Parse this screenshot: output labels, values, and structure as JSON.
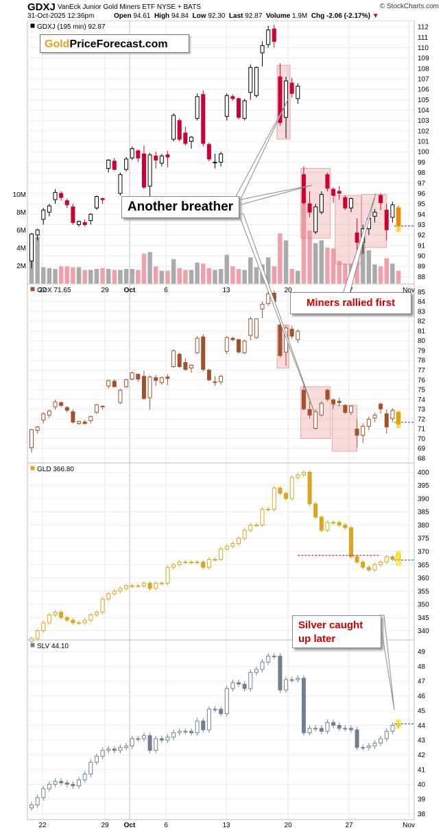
{
  "header": {
    "symbol": "GDXJ",
    "name": "VanEck Junior Gold Miners ETF  NYSE + BATS",
    "source": "© StockCharts.com",
    "date": "31-Oct-2025 12:36pm",
    "open_label": "Open",
    "open": "94.61",
    "high_label": "High",
    "high": "94.84",
    "low_label": "Low",
    "low": "92.30",
    "last_label": "Last",
    "last": "92.87",
    "volume_label": "Volume",
    "volume": "1.9M",
    "chg_label": "Chg",
    "chg": "-2.06 (-2.17%)"
  },
  "logo": {
    "gold": "Gold",
    "rest": "PriceForecast.com"
  },
  "annotations": {
    "another_breather": "Another breather",
    "miners_rallied": "Miners rallied first",
    "silver_caught_line1": "Silver caught",
    "silver_caught_line2": "up later"
  },
  "colors": {
    "up": "#000000",
    "down": "#cc0033",
    "gdx": "#a0522d",
    "gld": "#daa520",
    "slv": "#708090",
    "volume_up": "#aaaaaa",
    "volume_down": "#f0a0a8",
    "highlight": "#e88888"
  },
  "chart_data": {
    "type": "candlestick",
    "x_ticks": [
      "22",
      "29",
      "Oct",
      "6",
      "13",
      "20",
      "27",
      "Nov"
    ],
    "panels": [
      {
        "title": "GDXJ (195 min) 92.87",
        "y_ticks": [
          88,
          89,
          90,
          91,
          92,
          93,
          94,
          95,
          96,
          97,
          98,
          99,
          100,
          101,
          102,
          103,
          104,
          105,
          106,
          107,
          108,
          109,
          110,
          111,
          112
        ],
        "ylim": [
          87.3,
          112.6
        ],
        "volume_ticks": [
          "2M",
          "4M",
          "6M",
          "8M",
          "10M"
        ],
        "last": 92.87,
        "ohlc": [
          [
            89.5,
            92.2,
            88.8,
            92.1
          ],
          [
            92.0,
            92.6,
            91.5,
            92.5
          ],
          [
            93.5,
            94.6,
            93.0,
            94.4
          ],
          [
            94.2,
            95.0,
            93.8,
            94.8
          ],
          [
            95.4,
            96.4,
            95.0,
            96.1
          ],
          [
            96.0,
            96.2,
            95.3,
            95.6
          ],
          [
            95.3,
            95.5,
            94.6,
            94.9
          ],
          [
            94.7,
            95.0,
            93.0,
            93.2
          ],
          [
            93.0,
            93.4,
            92.8,
            93.3
          ],
          [
            93.2,
            93.5,
            92.8,
            93.0
          ],
          [
            93.4,
            94.1,
            93.0,
            94.0
          ],
          [
            94.6,
            95.8,
            94.4,
            95.7
          ],
          [
            95.5,
            95.6,
            95.0,
            95.4
          ],
          [
            98.4,
            99.3,
            98.0,
            99.2
          ],
          [
            99.1,
            99.4,
            98.2,
            98.3
          ],
          [
            96.0,
            98.0,
            95.8,
            97.8
          ],
          [
            98.3,
            99.5,
            98.1,
            99.3
          ],
          [
            99.4,
            100.5,
            99.2,
            100.3
          ],
          [
            100.1,
            100.2,
            99.0,
            99.4
          ],
          [
            99.8,
            100.6,
            96.4,
            96.6
          ],
          [
            96.7,
            99.9,
            95.0,
            99.7
          ],
          [
            99.6,
            100.0,
            98.4,
            99.2
          ],
          [
            98.9,
            99.8,
            98.6,
            99.6
          ],
          [
            99.7,
            100.1,
            98.5,
            99.5
          ],
          [
            101.2,
            103.7,
            101.0,
            103.5
          ],
          [
            103.0,
            103.2,
            101.0,
            101.2
          ],
          [
            101.8,
            102.4,
            100.6,
            100.8
          ],
          [
            101.0,
            101.5,
            100.3,
            101.4
          ],
          [
            103.2,
            105.6,
            103.0,
            105.3
          ],
          [
            105.5,
            105.9,
            100.5,
            100.8
          ],
          [
            100.7,
            100.9,
            99.1,
            99.3
          ],
          [
            99.0,
            99.8,
            98.4,
            99.0
          ],
          [
            99.0,
            100.0,
            98.6,
            99.8
          ],
          [
            103.4,
            105.6,
            103.0,
            105.4
          ],
          [
            105.3,
            105.5,
            104.9,
            105.1
          ],
          [
            105.1,
            105.2,
            103.1,
            103.3
          ],
          [
            103.2,
            105.1,
            103.0,
            104.9
          ],
          [
            105.7,
            108.4,
            105.0,
            108.1
          ],
          [
            105.4,
            108.2,
            105.2,
            108.1
          ],
          [
            109.5,
            110.6,
            108.2,
            110.2
          ],
          [
            110.3,
            112.1,
            110.0,
            111.7
          ],
          [
            111.8,
            112.2,
            110.0,
            110.6
          ],
          [
            107.2,
            108.5,
            102.5,
            102.8
          ],
          [
            103.3,
            107.2,
            101.3,
            106.8
          ],
          [
            106.6,
            107.1,
            105.2,
            105.6
          ],
          [
            105.1,
            106.6,
            104.6,
            106.3
          ],
          [
            97.8,
            98.6,
            94.9,
            95.1
          ],
          [
            95.0,
            96.2,
            93.7,
            94.2
          ],
          [
            92.3,
            95.0,
            92.1,
            94.7
          ],
          [
            94.2,
            96.2,
            94.0,
            95.9
          ],
          [
            97.8,
            98.0,
            96.2,
            96.5
          ],
          [
            96.4,
            96.6,
            95.1,
            95.8
          ],
          [
            96.2,
            96.7,
            95.4,
            96.0
          ],
          [
            95.6,
            95.8,
            94.4,
            94.6
          ],
          [
            94.6,
            95.6,
            94.2,
            95.5
          ],
          [
            92.2,
            93.6,
            89.5,
            91.3
          ],
          [
            91.3,
            93.0,
            90.2,
            92.6
          ],
          [
            92.6,
            94.0,
            92.0,
            93.6
          ],
          [
            93.8,
            94.5,
            93.2,
            94.2
          ],
          [
            95.8,
            96.0,
            94.4,
            95.1
          ],
          [
            94.4,
            95.0,
            91.5,
            92.5
          ],
          [
            93.7,
            95.2,
            93.2,
            94.9
          ],
          [
            94.6,
            94.8,
            92.3,
            92.9
          ]
        ],
        "volume_millions": [
          5.0,
          5.3,
          1.9,
          1.8,
          1.7,
          2.0,
          2.0,
          1.9,
          1.9,
          1.6,
          1.6,
          1.7,
          1.8,
          1.7,
          1.6,
          1.6,
          1.7,
          1.7,
          1.6,
          3.4,
          3.6,
          2.0,
          1.5,
          1.5,
          2.8,
          1.8,
          1.6,
          1.6,
          2.4,
          2.3,
          1.8,
          1.6,
          1.7,
          3.3,
          2.0,
          1.7,
          1.6,
          3.0,
          1.9,
          2.2,
          3.0,
          2.0,
          5.7,
          4.9,
          1.7,
          1.5,
          10.1,
          6.0,
          4.6,
          4.9,
          4.1,
          4.0,
          2.6,
          2.3,
          2.3,
          2.6,
          5.1,
          3.8,
          2.2,
          2.0,
          2.9,
          2.3,
          1.5
        ]
      },
      {
        "title": "GDX 71.65",
        "y_ticks": [
          68,
          69,
          70,
          71,
          72,
          73,
          74,
          75,
          76,
          77,
          78,
          79,
          80,
          81,
          82,
          83,
          84,
          85
        ],
        "ylim": [
          67.5,
          85.8
        ],
        "last": 71.65
      },
      {
        "title": "GLD 366.80",
        "y_ticks": [
          340,
          345,
          350,
          355,
          360,
          365,
          370,
          375,
          380,
          385,
          390,
          395,
          400
        ],
        "ylim": [
          336.5,
          403.5
        ],
        "last": 366.8
      },
      {
        "title": "SLV 44.10",
        "y_ticks": [
          38,
          39,
          40,
          41,
          42,
          43,
          44,
          45,
          46,
          47,
          48,
          49
        ],
        "ylim": [
          37.6,
          49.8
        ],
        "last": 44.1
      }
    ]
  }
}
